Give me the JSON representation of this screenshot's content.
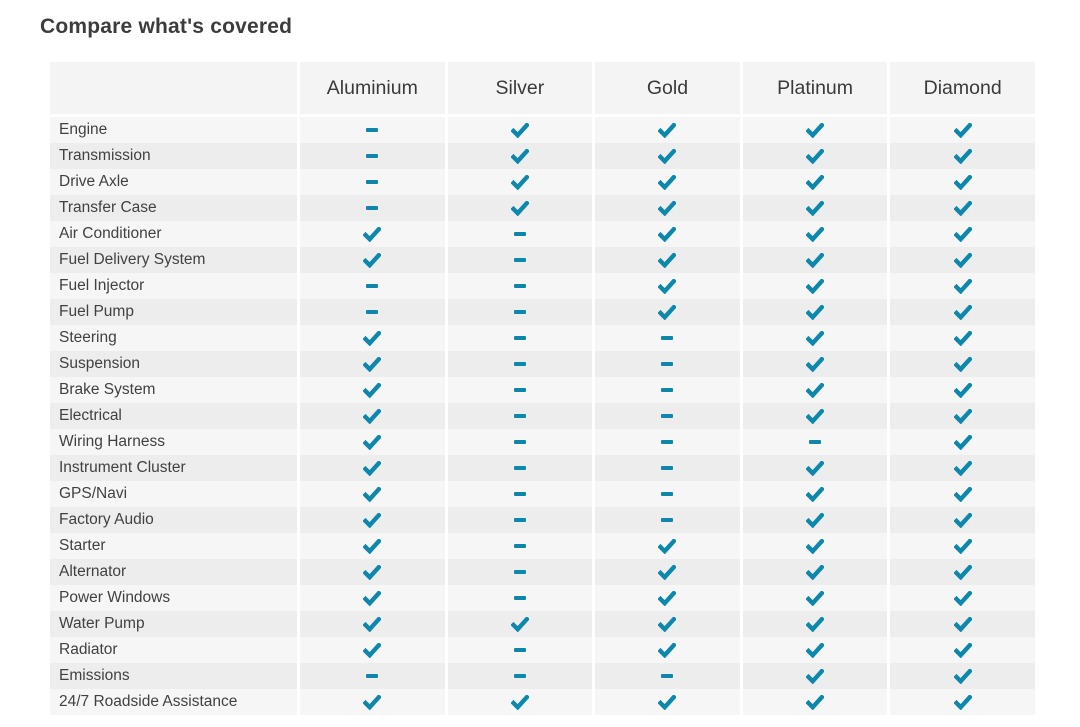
{
  "title": "Compare what's covered",
  "colors": {
    "accent": "#0e87ac",
    "row_light": "#f6f6f6",
    "row_dark": "#ededed",
    "header_bg": "#f4f4f4",
    "text": "#414141"
  },
  "table": {
    "plans": [
      "Aluminium",
      "Silver",
      "Gold",
      "Platinum",
      "Diamond"
    ],
    "legend": {
      "check": "covered",
      "dash": "not covered"
    },
    "rows": [
      {
        "label": "Engine",
        "values": [
          "dash",
          "check",
          "check",
          "check",
          "check"
        ]
      },
      {
        "label": "Transmission",
        "values": [
          "dash",
          "check",
          "check",
          "check",
          "check"
        ]
      },
      {
        "label": "Drive Axle",
        "values": [
          "dash",
          "check",
          "check",
          "check",
          "check"
        ]
      },
      {
        "label": "Transfer Case",
        "values": [
          "dash",
          "check",
          "check",
          "check",
          "check"
        ]
      },
      {
        "label": "Air Conditioner",
        "values": [
          "check",
          "dash",
          "check",
          "check",
          "check"
        ]
      },
      {
        "label": "Fuel Delivery System",
        "values": [
          "check",
          "dash",
          "check",
          "check",
          "check"
        ]
      },
      {
        "label": "Fuel Injector",
        "values": [
          "dash",
          "dash",
          "check",
          "check",
          "check"
        ]
      },
      {
        "label": "Fuel Pump",
        "values": [
          "dash",
          "dash",
          "check",
          "check",
          "check"
        ]
      },
      {
        "label": "Steering",
        "values": [
          "check",
          "dash",
          "dash",
          "check",
          "check"
        ]
      },
      {
        "label": "Suspension",
        "values": [
          "check",
          "dash",
          "dash",
          "check",
          "check"
        ]
      },
      {
        "label": "Brake System",
        "values": [
          "check",
          "dash",
          "dash",
          "check",
          "check"
        ]
      },
      {
        "label": "Electrical",
        "values": [
          "check",
          "dash",
          "dash",
          "check",
          "check"
        ]
      },
      {
        "label": "Wiring Harness",
        "values": [
          "check",
          "dash",
          "dash",
          "dash",
          "check"
        ]
      },
      {
        "label": "Instrument Cluster",
        "values": [
          "check",
          "dash",
          "dash",
          "check",
          "check"
        ]
      },
      {
        "label": "GPS/Navi",
        "values": [
          "check",
          "dash",
          "dash",
          "check",
          "check"
        ]
      },
      {
        "label": "Factory Audio",
        "values": [
          "check",
          "dash",
          "dash",
          "check",
          "check"
        ]
      },
      {
        "label": "Starter",
        "values": [
          "check",
          "dash",
          "check",
          "check",
          "check"
        ]
      },
      {
        "label": "Alternator",
        "values": [
          "check",
          "dash",
          "check",
          "check",
          "check"
        ]
      },
      {
        "label": "Power Windows",
        "values": [
          "check",
          "dash",
          "check",
          "check",
          "check"
        ]
      },
      {
        "label": "Water Pump",
        "values": [
          "check",
          "check",
          "check",
          "check",
          "check"
        ]
      },
      {
        "label": "Radiator",
        "values": [
          "check",
          "dash",
          "check",
          "check",
          "check"
        ]
      },
      {
        "label": "Emissions",
        "values": [
          "dash",
          "dash",
          "dash",
          "check",
          "check"
        ]
      },
      {
        "label": "24/7 Roadside Assistance",
        "values": [
          "check",
          "check",
          "check",
          "check",
          "check"
        ]
      }
    ]
  }
}
